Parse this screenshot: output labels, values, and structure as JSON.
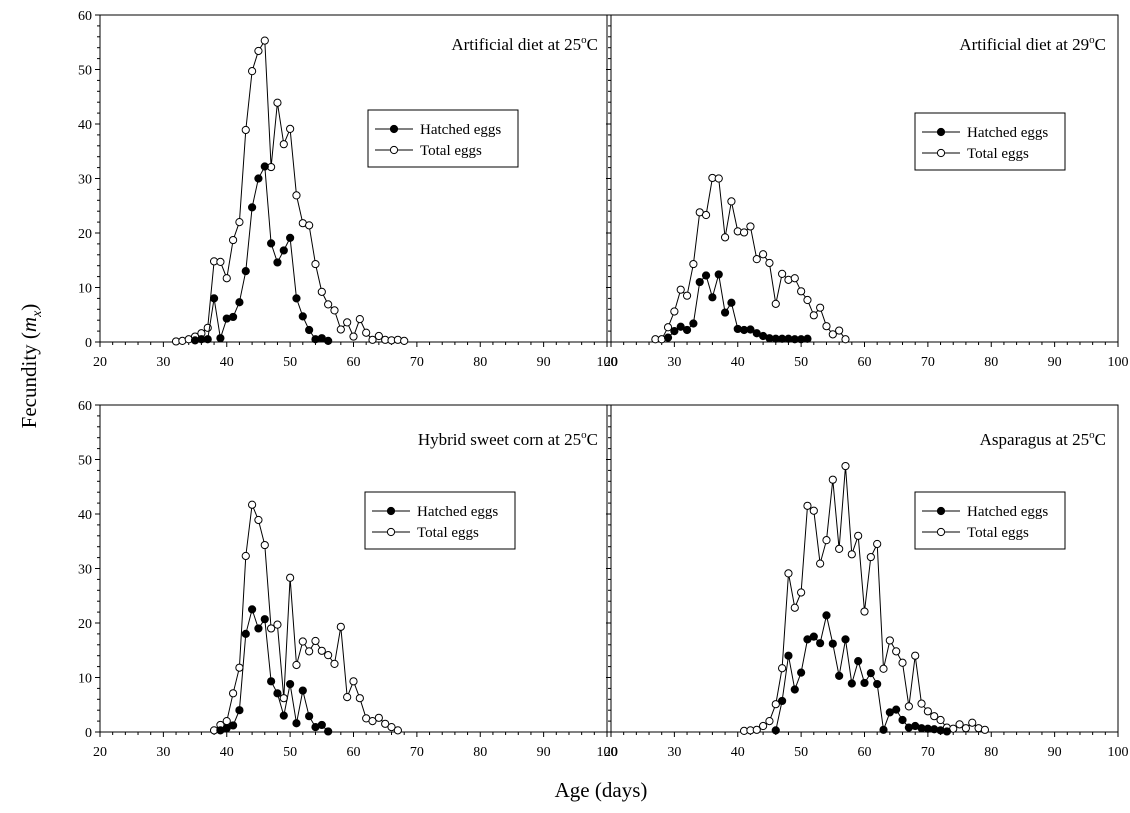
{
  "figure": {
    "ylabel": "Fecundity (",
    "ylabel_var": "m",
    "ylabel_sub": "x",
    "ylabel_close": ")",
    "xlabel": "Age (days)"
  },
  "chart_data": [
    {
      "type": "line",
      "panel": "top-left",
      "title": "Artificial diet at 25",
      "title_sup": "o",
      "title_unit": "C",
      "xlim": [
        20,
        100
      ],
      "ylim": [
        0,
        60
      ],
      "xticks": [
        20,
        30,
        40,
        50,
        60,
        70,
        80,
        90,
        100
      ],
      "yticks": [
        0,
        10,
        20,
        30,
        40,
        50,
        60
      ],
      "show_yticklabels": true,
      "legend_position": "upper-right",
      "series": [
        {
          "name": "Hatched eggs",
          "marker": "filled",
          "x": [
            35,
            36,
            37,
            38,
            39,
            40,
            41,
            42,
            43,
            44,
            45,
            46,
            47,
            48,
            49,
            50,
            51,
            52,
            53,
            54,
            55,
            56
          ],
          "y": [
            0.3,
            0.5,
            0.5,
            8,
            0.7,
            4.3,
            4.6,
            7.3,
            13,
            24.7,
            30,
            32.2,
            18.1,
            14.6,
            16.8,
            19.1,
            8,
            4.7,
            2.2,
            0.5,
            0.7,
            0.2
          ]
        },
        {
          "name": "Total eggs",
          "marker": "open",
          "x": [
            32,
            33,
            34,
            35,
            36,
            37,
            38,
            39,
            40,
            41,
            42,
            43,
            44,
            45,
            46,
            47,
            48,
            49,
            50,
            51,
            52,
            53,
            54,
            55,
            56,
            57,
            58,
            59,
            60,
            61,
            62,
            63,
            64,
            65,
            66,
            67,
            68
          ],
          "y": [
            0.1,
            0.2,
            0.5,
            1,
            1.6,
            2.6,
            14.8,
            14.7,
            11.7,
            18.7,
            22,
            38.9,
            49.7,
            53.4,
            55.3,
            32.1,
            43.9,
            36.3,
            39.1,
            26.9,
            21.8,
            21.4,
            14.3,
            9.2,
            6.9,
            5.8,
            2.3,
            3.6,
            1,
            4.2,
            1.7,
            0.4,
            1.1,
            0.4,
            0.3,
            0.4,
            0.2
          ]
        }
      ]
    },
    {
      "type": "line",
      "panel": "top-right",
      "title": "Artificial diet at 29",
      "title_sup": "o",
      "title_unit": "C",
      "xlim": [
        20,
        100
      ],
      "ylim": [
        0,
        60
      ],
      "xticks": [
        20,
        30,
        40,
        50,
        60,
        70,
        80,
        90,
        100
      ],
      "yticks": [
        0,
        10,
        20,
        30,
        40,
        50,
        60
      ],
      "show_yticklabels": false,
      "legend_position": "upper-right",
      "series": [
        {
          "name": "Hatched eggs",
          "marker": "filled",
          "x": [
            29,
            30,
            31,
            32,
            33,
            34,
            35,
            36,
            37,
            38,
            39,
            40,
            41,
            42,
            43,
            44,
            45,
            46,
            47,
            48,
            49,
            50,
            51
          ],
          "y": [
            0.8,
            2,
            2.8,
            2.2,
            3.4,
            11,
            12.2,
            8.2,
            12.4,
            5.4,
            7.2,
            2.4,
            2.2,
            2.3,
            1.6,
            1.1,
            0.7,
            0.6,
            0.6,
            0.6,
            0.5,
            0.5,
            0.6
          ]
        },
        {
          "name": "Total eggs",
          "marker": "open",
          "x": [
            27,
            28,
            29,
            30,
            31,
            32,
            33,
            34,
            35,
            36,
            37,
            38,
            39,
            40,
            41,
            42,
            43,
            44,
            45,
            46,
            47,
            48,
            49,
            50,
            51,
            52,
            53,
            54,
            55,
            56,
            57
          ],
          "y": [
            0.5,
            0.5,
            2.7,
            5.6,
            9.6,
            8.5,
            14.3,
            23.8,
            23.3,
            30.1,
            30,
            19.2,
            25.8,
            20.3,
            20.1,
            21.2,
            15.2,
            16.1,
            14.5,
            7,
            12.5,
            11.4,
            11.7,
            9.3,
            7.7,
            4.9,
            6.3,
            2.9,
            1.4,
            2.1,
            0.5
          ]
        }
      ]
    },
    {
      "type": "line",
      "panel": "bottom-left",
      "title": "Hybrid sweet corn at 25",
      "title_sup": "o",
      "title_unit": "C",
      "xlim": [
        20,
        100
      ],
      "ylim": [
        0,
        60
      ],
      "xticks": [
        20,
        30,
        40,
        50,
        60,
        70,
        80,
        90,
        100
      ],
      "yticks": [
        0,
        10,
        20,
        30,
        40,
        50,
        60
      ],
      "show_yticklabels": true,
      "legend_position": "center-right",
      "series": [
        {
          "name": "Hatched eggs",
          "marker": "filled",
          "x": [
            39,
            40,
            41,
            42,
            43,
            44,
            45,
            46,
            47,
            48,
            49,
            50,
            51,
            52,
            53,
            54,
            55,
            56
          ],
          "y": [
            0.3,
            0.7,
            1.2,
            4,
            18,
            22.5,
            19,
            20.7,
            9.3,
            7.1,
            3,
            8.8,
            1.6,
            7.6,
            2.9,
            0.9,
            1.3,
            0.1
          ]
        },
        {
          "name": "Total eggs",
          "marker": "open",
          "x": [
            38,
            39,
            40,
            41,
            42,
            43,
            44,
            45,
            46,
            47,
            48,
            49,
            50,
            51,
            52,
            53,
            54,
            55,
            56,
            57,
            58,
            59,
            60,
            61,
            62,
            63,
            64,
            65,
            66,
            67
          ],
          "y": [
            0.3,
            1.3,
            2,
            7.1,
            11.8,
            32.3,
            41.7,
            38.9,
            34.3,
            19,
            19.7,
            6.2,
            28.3,
            12.3,
            16.6,
            14.8,
            16.7,
            14.9,
            14.1,
            12.5,
            19.3,
            6.4,
            9.3,
            6.2,
            2.5,
            2,
            2.6,
            1.5,
            0.9,
            0.3
          ]
        }
      ]
    },
    {
      "type": "line",
      "panel": "bottom-right",
      "title": "Asparagus at 25",
      "title_sup": "o",
      "title_unit": "C",
      "xlim": [
        20,
        100
      ],
      "ylim": [
        0,
        60
      ],
      "xticks": [
        20,
        30,
        40,
        50,
        60,
        70,
        80,
        90,
        100
      ],
      "yticks": [
        0,
        10,
        20,
        30,
        40,
        50,
        60
      ],
      "show_yticklabels": false,
      "legend_position": "center-right",
      "series": [
        {
          "name": "Hatched eggs",
          "marker": "filled",
          "x": [
            46,
            47,
            48,
            49,
            50,
            51,
            52,
            53,
            54,
            55,
            56,
            57,
            58,
            59,
            60,
            61,
            62,
            63,
            64,
            65,
            66,
            67,
            68,
            69,
            70,
            71,
            72,
            73
          ],
          "y": [
            0.3,
            5.7,
            14,
            7.8,
            10.9,
            17,
            17.5,
            16.3,
            21.4,
            16.2,
            10.3,
            17,
            8.9,
            13,
            9,
            10.8,
            8.8,
            0.4,
            3.6,
            4.1,
            2.2,
            0.8,
            1.1,
            0.7,
            0.6,
            0.5,
            0.3,
            0.1
          ]
        },
        {
          "name": "Total eggs",
          "marker": "open",
          "x": [
            41,
            42,
            43,
            44,
            45,
            46,
            47,
            48,
            49,
            50,
            51,
            52,
            53,
            54,
            55,
            56,
            57,
            58,
            59,
            60,
            61,
            62,
            63,
            64,
            65,
            66,
            67,
            68,
            69,
            70,
            71,
            72,
            73,
            74,
            75,
            76,
            77,
            78,
            79
          ],
          "y": [
            0.2,
            0.3,
            0.4,
            1.1,
            2,
            5.1,
            11.7,
            29.1,
            22.8,
            25.6,
            41.5,
            40.6,
            30.9,
            35.2,
            46.3,
            33.6,
            48.8,
            32.6,
            36,
            22.1,
            32.1,
            34.5,
            11.6,
            16.8,
            14.8,
            12.7,
            4.7,
            14,
            5.2,
            3.8,
            2.9,
            2.2,
            0.8,
            0.6,
            1.4,
            0.7,
            1.7,
            0.7,
            0.4
          ]
        }
      ]
    }
  ]
}
